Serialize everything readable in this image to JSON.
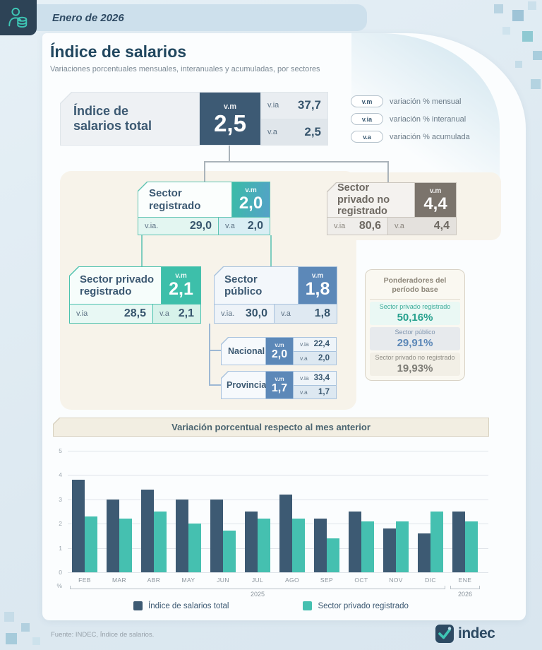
{
  "header": {
    "date": "Enero de 2026"
  },
  "title": "Índice de salarios",
  "subtitle": "Variaciones porcentuales mensuales, interanuales y acumuladas, por sectores",
  "abbr_legend": [
    {
      "tag": "v.m",
      "label": "variación % mensual"
    },
    {
      "tag": "v.ia",
      "label": "variación % interanual"
    },
    {
      "tag": "v.a",
      "label": "variación % acumulada"
    }
  ],
  "tree": {
    "total": {
      "title": "Índice de salarios total",
      "vm_label": "v.m",
      "vm": "2,5",
      "via_label": "v.ia",
      "via": "37,7",
      "va_label": "v.a",
      "va": "2,5"
    },
    "registrado": {
      "title": "Sector registrado",
      "vm_label": "v.m",
      "vm": "2,0",
      "via_label": "v.ia.",
      "via": "29,0",
      "va_label": "v.a",
      "va": "2,0"
    },
    "no_registrado": {
      "title": "Sector privado no registrado",
      "vm_label": "v.m",
      "vm": "4,4",
      "via_label": "v.ia",
      "via": "80,6",
      "va_label": "v.a",
      "va": "4,4"
    },
    "privado_registrado": {
      "title": "Sector privado registrado",
      "vm_label": "v.m",
      "vm": "2,1",
      "via_label": "v.ia",
      "via": "28,5",
      "va_label": "v.a",
      "va": "2,1"
    },
    "publico": {
      "title": "Sector público",
      "vm_label": "v.m",
      "vm": "1,8",
      "via_label": "v.ia.",
      "via": "30,0",
      "va_label": "v.a",
      "va": "1,8"
    },
    "nacional": {
      "title": "Nacional",
      "vm_label": "v.m",
      "vm": "2,0",
      "via_label": "v.ia",
      "via": "22,4",
      "va_label": "v.a",
      "va": "2,0"
    },
    "provincial": {
      "title": "Provincial",
      "vm_label": "v.m",
      "vm": "1,7",
      "via_label": "v.ia",
      "via": "33,4",
      "va_label": "v.a",
      "va": "1,7"
    }
  },
  "ponderadores": {
    "title": "Ponderadores del período base",
    "rows": [
      {
        "label": "Sector privado registrado",
        "value": "50,16%"
      },
      {
        "label": "Sector público",
        "value": "29,91%"
      },
      {
        "label": "Sector privado no registrado",
        "value": "19,93%"
      }
    ]
  },
  "chart_data": {
    "type": "bar",
    "title": "Variación porcentual respecto al mes anterior",
    "categories": [
      "FEB",
      "MAR",
      "ABR",
      "MAY",
      "JUN",
      "JUL",
      "AGO",
      "SEP",
      "OCT",
      "NOV",
      "DIC",
      "ENE"
    ],
    "series": [
      {
        "name": "Índice de salarios total",
        "color": "#3d5a73",
        "values": [
          3.8,
          3.0,
          3.4,
          3.0,
          3.0,
          2.5,
          3.2,
          2.2,
          2.5,
          1.8,
          1.6,
          2.5
        ]
      },
      {
        "name": "Sector privado registrado",
        "color": "#45c0b0",
        "values": [
          2.3,
          2.2,
          2.5,
          2.0,
          1.7,
          2.2,
          2.2,
          1.4,
          2.1,
          2.1,
          2.5,
          2.1
        ]
      }
    ],
    "ylabel": "%",
    "ylim": [
      0,
      5
    ],
    "yticks": [
      5,
      4,
      3,
      2,
      1,
      0
    ],
    "grid": true,
    "legend_position": "bottom",
    "year_groups": [
      {
        "label": "2025",
        "from": "FEB",
        "to": "DIC"
      },
      {
        "label": "2026",
        "from": "ENE",
        "to": "ENE"
      }
    ]
  },
  "footer": {
    "source": "Fuente: INDEC, Índice de salarios.",
    "brand": "indec"
  }
}
